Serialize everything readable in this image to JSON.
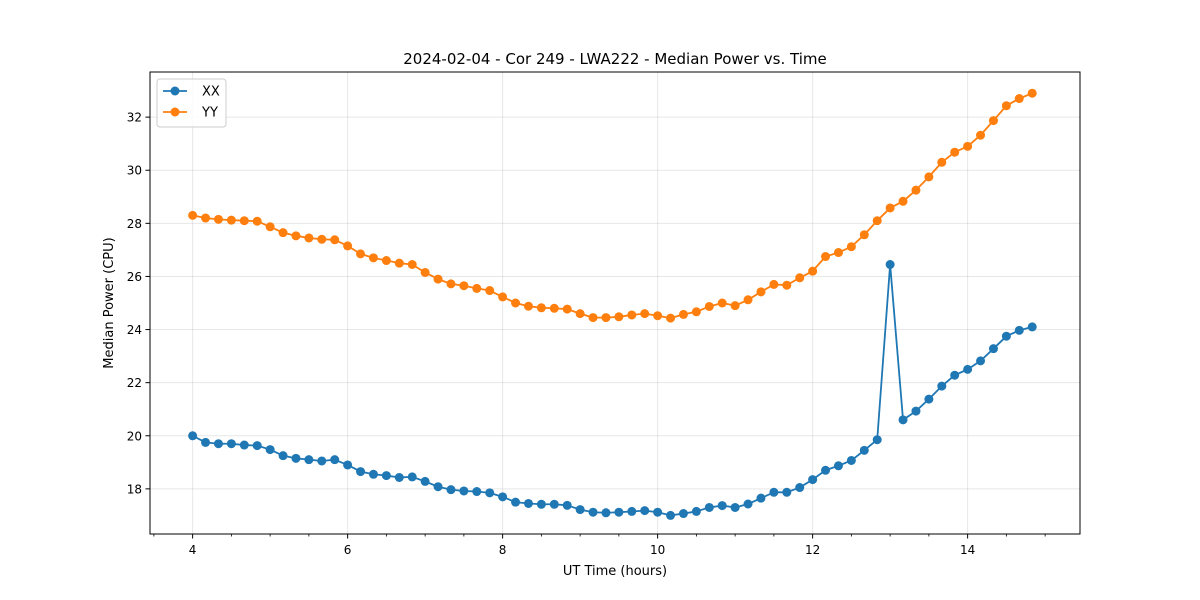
{
  "chart_data": {
    "type": "line",
    "title": "2024-02-04 - Cor 249 - LWA222 - Median Power vs. Time",
    "xlabel": "UT Time (hours)",
    "ylabel": "Median Power (CPU)",
    "xlim": [
      3.45,
      15.45
    ],
    "ylim": [
      16.3,
      33.7
    ],
    "xticks": [
      4,
      6,
      8,
      10,
      12,
      14
    ],
    "xtick_labels": [
      "4",
      "6",
      "8",
      "10",
      "12",
      "14"
    ],
    "yticks": [
      18,
      20,
      22,
      24,
      26,
      28,
      30,
      32
    ],
    "ytick_labels": [
      "18",
      "20",
      "22",
      "24",
      "26",
      "28",
      "30",
      "32"
    ],
    "grid": true,
    "legend_position": "top-left",
    "x": [
      4.0,
      4.1667,
      4.3333,
      4.5,
      4.6667,
      4.8333,
      5.0,
      5.1667,
      5.3333,
      5.5,
      5.6667,
      5.8333,
      6.0,
      6.1667,
      6.3333,
      6.5,
      6.6667,
      6.8333,
      7.0,
      7.1667,
      7.3333,
      7.5,
      7.6667,
      7.8333,
      8.0,
      8.1667,
      8.3333,
      8.5,
      8.6667,
      8.8333,
      9.0,
      9.1667,
      9.3333,
      9.5,
      9.6667,
      9.8333,
      10.0,
      10.1667,
      10.3333,
      10.5,
      10.6667,
      10.8333,
      11.0,
      11.1667,
      11.3333,
      11.5,
      11.6667,
      11.8333,
      12.0,
      12.1667,
      12.3333,
      12.5,
      12.6667,
      12.8333,
      13.0,
      13.1667,
      13.3333,
      13.5,
      13.6667,
      13.8333,
      14.0,
      14.1667,
      14.3333,
      14.5,
      14.6667,
      14.8333
    ],
    "series": [
      {
        "name": "XX",
        "color": "#1f77b4",
        "values": [
          20.0,
          19.75,
          19.7,
          19.7,
          19.65,
          19.63,
          19.48,
          19.25,
          19.15,
          19.1,
          19.05,
          19.1,
          18.9,
          18.65,
          18.55,
          18.5,
          18.43,
          18.45,
          18.28,
          18.08,
          17.97,
          17.92,
          17.9,
          17.85,
          17.7,
          17.5,
          17.45,
          17.42,
          17.42,
          17.38,
          17.22,
          17.12,
          17.1,
          17.12,
          17.15,
          17.18,
          17.12,
          17.0,
          17.07,
          17.15,
          17.3,
          17.37,
          17.3,
          17.43,
          17.65,
          17.87,
          17.87,
          18.05,
          18.35,
          18.7,
          18.87,
          19.07,
          19.45,
          19.85,
          26.45,
          20.6,
          20.93,
          21.38,
          21.87,
          22.28,
          22.5,
          22.82,
          23.28,
          23.75,
          23.97,
          24.1
        ]
      },
      {
        "name": "YY",
        "color": "#ff7f0e",
        "values": [
          28.3,
          28.2,
          28.15,
          28.12,
          28.1,
          28.08,
          27.87,
          27.65,
          27.53,
          27.45,
          27.4,
          27.38,
          27.15,
          26.85,
          26.7,
          26.6,
          26.5,
          26.45,
          26.15,
          25.9,
          25.72,
          25.65,
          25.55,
          25.47,
          25.23,
          25.0,
          24.88,
          24.82,
          24.8,
          24.77,
          24.6,
          24.45,
          24.45,
          24.48,
          24.55,
          24.6,
          24.52,
          24.43,
          24.57,
          24.67,
          24.87,
          25.0,
          24.9,
          25.12,
          25.42,
          25.7,
          25.67,
          25.95,
          26.2,
          26.75,
          26.9,
          27.12,
          27.57,
          28.1,
          28.58,
          28.83,
          29.25,
          29.75,
          30.3,
          30.68,
          30.9,
          31.32,
          31.87,
          32.43,
          32.7,
          32.9
        ]
      }
    ]
  }
}
